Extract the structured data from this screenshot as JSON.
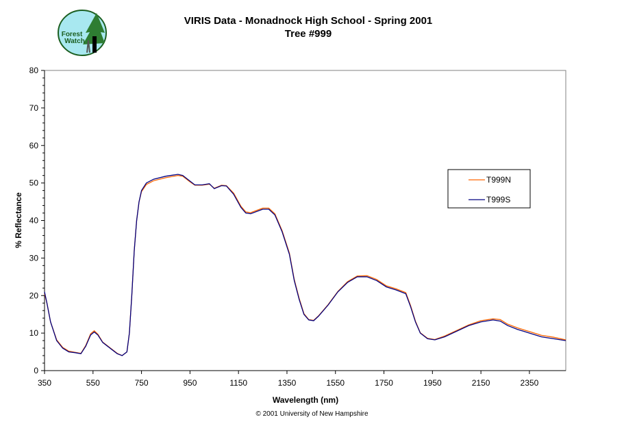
{
  "logo": {
    "text": "Forest Watch",
    "colors": {
      "sky": "#a8e8f0",
      "tree": "#2e7d32",
      "border": "#1b5e20"
    }
  },
  "copyright": "© 2001 University of New Hampshire",
  "chart_data": {
    "type": "line",
    "title": "VIRIS Data - Monadnock High School - Spring 2001",
    "subtitle": "Tree #999",
    "xlabel": "Wavelength (nm)",
    "ylabel": "% Reflectance",
    "xlim": [
      350,
      2500
    ],
    "ylim": [
      0,
      80
    ],
    "xticks": [
      350,
      550,
      750,
      950,
      1150,
      1350,
      1550,
      1750,
      1950,
      2150,
      2350
    ],
    "yticks": [
      0,
      10,
      20,
      30,
      40,
      50,
      60,
      70,
      80
    ],
    "grid": false,
    "legend_position": "right",
    "x": [
      350,
      360,
      375,
      400,
      425,
      450,
      475,
      500,
      520,
      540,
      555,
      570,
      590,
      610,
      630,
      650,
      670,
      690,
      700,
      710,
      720,
      730,
      740,
      750,
      770,
      800,
      850,
      900,
      920,
      950,
      970,
      1000,
      1030,
      1050,
      1080,
      1100,
      1130,
      1160,
      1180,
      1200,
      1250,
      1275,
      1300,
      1330,
      1360,
      1380,
      1400,
      1420,
      1440,
      1460,
      1480,
      1520,
      1560,
      1600,
      1640,
      1680,
      1720,
      1760,
      1800,
      1840,
      1860,
      1880,
      1900,
      1930,
      1960,
      2000,
      2050,
      2100,
      2150,
      2200,
      2230,
      2260,
      2300,
      2350,
      2400,
      2450,
      2500
    ],
    "series": [
      {
        "name": "T999N",
        "color": "#ff6600",
        "values": [
          20.5,
          18,
          13,
          8.2,
          6.2,
          5.2,
          4.9,
          4.6,
          6.7,
          9.8,
          10.6,
          9.7,
          7.6,
          6.6,
          5.6,
          4.6,
          4,
          5,
          10,
          20,
          32,
          40,
          45,
          47.7,
          49.6,
          50.6,
          51.4,
          52,
          51.8,
          50.3,
          49.4,
          49.4,
          49.7,
          48.6,
          49.4,
          49.3,
          47.3,
          43.8,
          42.3,
          42.1,
          43.3,
          43.3,
          41.8,
          37.3,
          31.3,
          24.3,
          19.3,
          15.2,
          13.6,
          13.4,
          14.6,
          17.6,
          21.1,
          23.7,
          25.2,
          25.3,
          24.3,
          22.6,
          21.8,
          20.8,
          17.3,
          13.2,
          10.1,
          8.6,
          8.3,
          9.2,
          10.7,
          12.2,
          13.3,
          13.8,
          13.6,
          12.4,
          11.4,
          10.4,
          9.4,
          8.9,
          8.2
        ]
      },
      {
        "name": "T999S",
        "color": "#000080",
        "values": [
          21,
          18,
          13,
          8,
          6,
          5,
          4.8,
          4.5,
          6.5,
          9.5,
          10.3,
          9.5,
          7.5,
          6.5,
          5.5,
          4.5,
          4,
          5,
          10,
          20,
          32,
          40,
          45,
          48,
          50,
          51,
          51.8,
          52.3,
          52,
          50.5,
          49.5,
          49.5,
          49.8,
          48.5,
          49.3,
          49.2,
          47,
          43.5,
          42,
          41.8,
          43,
          43,
          41.5,
          37,
          31,
          24,
          19,
          15,
          13.5,
          13.3,
          14.5,
          17.5,
          21,
          23.5,
          25,
          25,
          24,
          22.3,
          21.5,
          20.5,
          17,
          13,
          10,
          8.5,
          8.2,
          9,
          10.5,
          12,
          13,
          13.5,
          13.2,
          12,
          11,
          10,
          9,
          8.5,
          8
        ]
      }
    ]
  }
}
